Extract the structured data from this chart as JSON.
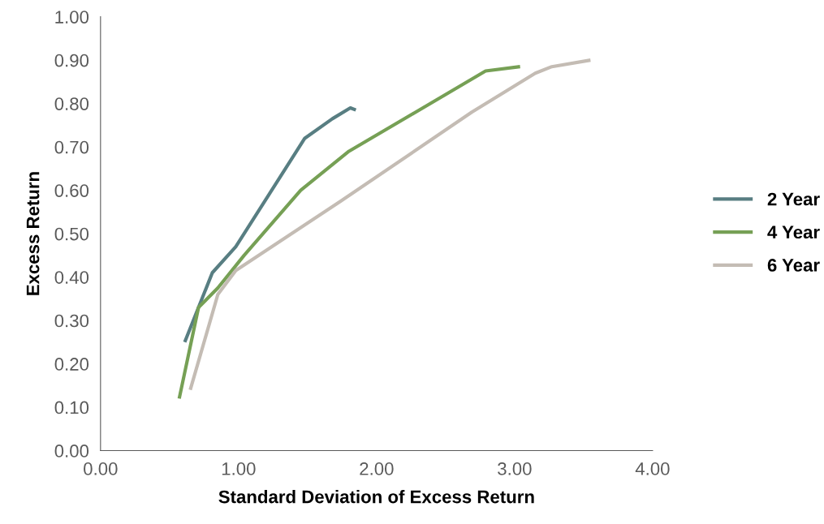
{
  "chart_data": {
    "type": "line",
    "xlabel": "Standard Deviation of Excess Return",
    "ylabel": "Excess Return",
    "xlim": [
      0,
      4
    ],
    "xticks": [
      {
        "value": 0,
        "label": "0.00"
      },
      {
        "value": 1,
        "label": "1.00"
      },
      {
        "value": 2,
        "label": "2.00"
      },
      {
        "value": 3,
        "label": "3.00"
      },
      {
        "value": 4,
        "label": "4.00"
      }
    ],
    "ylim": [
      0,
      1
    ],
    "yticks": [
      {
        "value": 0,
        "label": "0.00"
      },
      {
        "value": 0.1,
        "label": "0.10"
      },
      {
        "value": 0.2,
        "label": "0.20"
      },
      {
        "value": 0.3,
        "label": "0.30"
      },
      {
        "value": 0.4,
        "label": "0.40"
      },
      {
        "value": 0.5,
        "label": "0.50"
      },
      {
        "value": 0.6,
        "label": "0.60"
      },
      {
        "value": 0.7,
        "label": "0.70"
      },
      {
        "value": 0.8,
        "label": "0.80"
      },
      {
        "value": 0.9,
        "label": "0.90"
      },
      {
        "value": 1,
        "label": "1.00"
      }
    ],
    "grid": false,
    "legend": "right",
    "marker": "none",
    "line_style": "solid",
    "series": [
      {
        "name": "2 Year",
        "color": "#587e82",
        "x": [
          0.61,
          0.81,
          0.98,
          1.48,
          1.68,
          1.81,
          1.85
        ],
        "values": [
          0.25,
          0.41,
          0.47,
          0.72,
          0.765,
          0.79,
          0.785
        ]
      },
      {
        "name": "4 Year",
        "color": "#76a055",
        "x": [
          0.57,
          0.71,
          0.85,
          1.04,
          1.45,
          1.8,
          2.79,
          3.04
        ],
        "values": [
          0.12,
          0.33,
          0.375,
          0.45,
          0.6,
          0.69,
          0.875,
          0.885
        ]
      },
      {
        "name": "6 Year",
        "color": "#c4bcb4",
        "x": [
          0.65,
          0.85,
          0.98,
          1.74,
          2.69,
          3.15,
          3.27,
          3.55
        ],
        "values": [
          0.14,
          0.36,
          0.415,
          0.575,
          0.78,
          0.87,
          0.885,
          0.9
        ]
      }
    ]
  }
}
